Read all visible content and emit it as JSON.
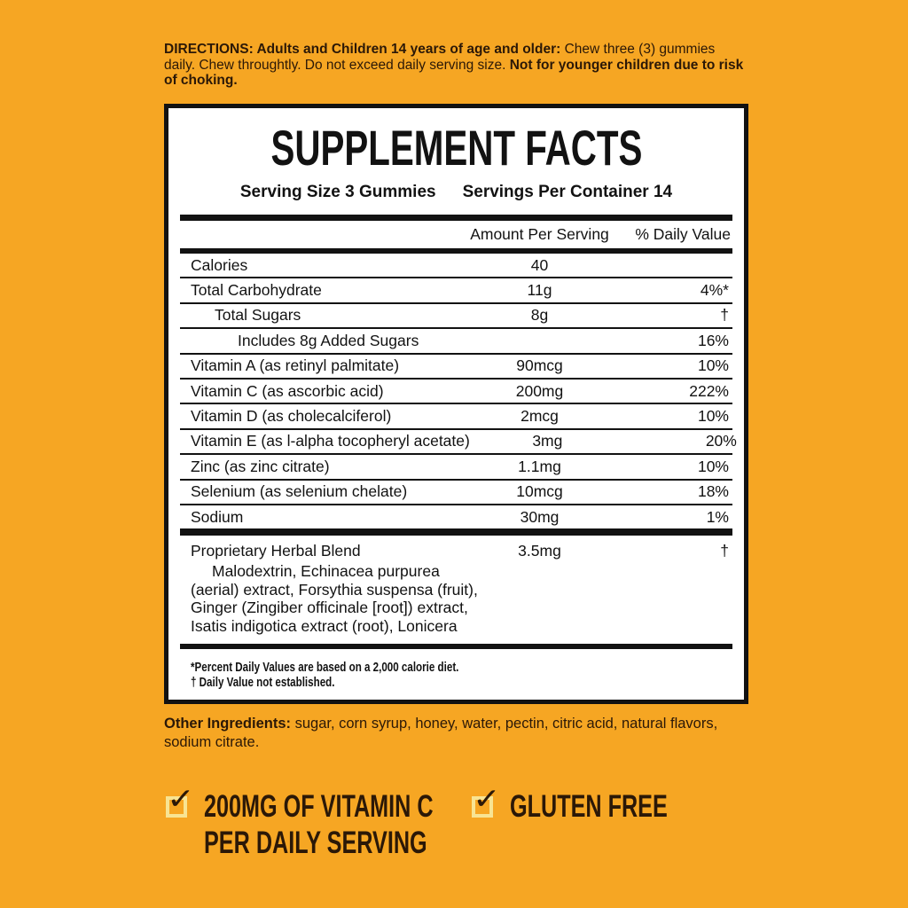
{
  "colors": {
    "background": "#F6A623",
    "dark_text": "#2B1807",
    "panel_bg": "#FFFFFF",
    "panel_rule": "#121212",
    "checkbox_outline": "#F8E493"
  },
  "directions": {
    "bold_lead": "DIRECTIONS: Adults and Children 14 years of age and older:",
    "body": " Chew three (3) gummies daily. Chew throughtly. Do not exceed daily serving size. ",
    "bold_tail": "Not for younger children due to risk of choking."
  },
  "panel": {
    "title": "SUPPLEMENT FACTS",
    "serving_size": "Serving Size 3 Gummies",
    "servings_per_container": "Servings Per Container 14",
    "table": {
      "headers": {
        "amount": "Amount Per Serving",
        "daily_value": "% Daily Value"
      },
      "rows": [
        {
          "name": "Calories",
          "amount": "40",
          "dv": ""
        },
        {
          "name": "Total Carbohydrate",
          "amount": "11g",
          "dv": "4%*"
        },
        {
          "name": "Total Sugars",
          "amount": "8g",
          "dv": "†"
        },
        {
          "name": "Includes 8g Added Sugars",
          "amount": "",
          "dv": "16%"
        },
        {
          "name": "Vitamin A (as retinyl palmitate)",
          "amount": "90mcg",
          "dv": "10%"
        },
        {
          "name": "Vitamin C (as ascorbic acid)",
          "amount": "200mg",
          "dv": "222%"
        },
        {
          "name": "Vitamin D (as cholecalciferol)",
          "amount": "2mcg",
          "dv": "10%"
        },
        {
          "name": "Vitamin E (as l-alpha tocopheryl acetate)",
          "amount": "3mg",
          "dv": "20%"
        },
        {
          "name": "Zinc (as zinc citrate)",
          "amount": "1.1mg",
          "dv": "10%"
        },
        {
          "name": "Selenium (as selenium chelate)",
          "amount": "10mcg",
          "dv": "18%"
        },
        {
          "name": "Sodium",
          "amount": "30mg",
          "dv": "1%"
        }
      ],
      "blend": {
        "name": "Proprietary Herbal Blend",
        "amount": "3.5mg",
        "dv": "†",
        "desc_line1": "Malodextrin, Echinacea purpurea",
        "desc_line2": "(aerial) extract, Forsythia suspensa (fruit),",
        "desc_line3": "Ginger (Zingiber officinale [root]) extract,",
        "desc_line4": "Isatis indigotica extract (root), Lonicera"
      }
    },
    "footnotes": {
      "line1": "*Percent Daily Values are based on a 2,000 calorie diet.",
      "line2": "† Daily Value not established."
    }
  },
  "other_ingredients": {
    "bold_lead": "Other Ingredients:",
    "body": " sugar, corn syrup, honey, water, pectin, citric acid, natural flavors, sodium citrate."
  },
  "badges": {
    "check_glyph": "✓",
    "vitamin_c_line1": "200MG OF VITAMIN C",
    "vitamin_c_line2": "PER DAILY SERVING",
    "gluten_free": "GLUTEN FREE"
  }
}
